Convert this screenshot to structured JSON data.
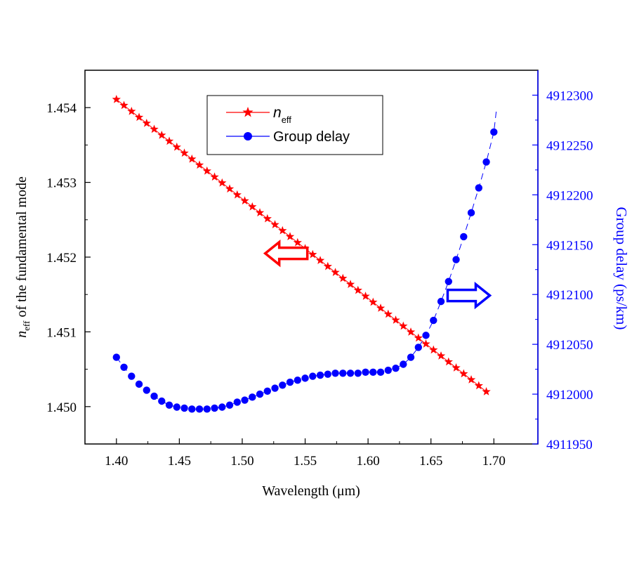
{
  "chart_data": {
    "type": "scatter",
    "xlabel": "Wavelength (μm)",
    "ylabel_left_prefix": "n",
    "ylabel_left_sub": "eff",
    "ylabel_left_suffix": " of the fundamental mode",
    "ylabel_right": "Group delay (ps/km)",
    "xlim": [
      1.375,
      1.735
    ],
    "ylim_left": [
      1.4495,
      1.4545
    ],
    "ylim_right": [
      4911950,
      4912325
    ],
    "x_ticks": [
      1.4,
      1.45,
      1.5,
      1.55,
      1.6,
      1.65,
      1.7
    ],
    "x_tick_labels": [
      "1.40",
      "1.45",
      "1.50",
      "1.55",
      "1.60",
      "1.65",
      "1.70"
    ],
    "y_left_ticks": [
      1.45,
      1.451,
      1.452,
      1.453,
      1.454
    ],
    "y_left_tick_labels": [
      "1.450",
      "1.451",
      "1.452",
      "1.453",
      "1.454"
    ],
    "y_right_ticks": [
      4911950,
      4912000,
      4912050,
      4912100,
      4912150,
      4912200,
      4912250,
      4912300
    ],
    "y_right_tick_labels": [
      "4911950",
      "4912000",
      "4912050",
      "4912100",
      "4912150",
      "4912200",
      "4912250",
      "4912300"
    ],
    "legend": {
      "position": "top-left",
      "entries": [
        {
          "name_main": "n",
          "name_sub": "eff",
          "marker": "star",
          "color": "#ff0000"
        },
        {
          "name_main": "Group delay",
          "name_sub": "",
          "marker": "circle",
          "color": "#0000ff"
        }
      ]
    },
    "series": [
      {
        "name": "neff",
        "axis": "left",
        "color": "#ff0000",
        "marker": "star",
        "line": "solid",
        "x_start": 1.4,
        "x_step": 0.006,
        "count": 50,
        "y_start": 1.45411,
        "y_end": 1.4502
      },
      {
        "name": "Group delay",
        "axis": "right",
        "color": "#0000ff",
        "marker": "circle",
        "line": "dashed-tail",
        "x": [
          1.4,
          1.406,
          1.412,
          1.418,
          1.424,
          1.43,
          1.436,
          1.442,
          1.448,
          1.454,
          1.46,
          1.466,
          1.472,
          1.478,
          1.484,
          1.49,
          1.496,
          1.502,
          1.508,
          1.514,
          1.52,
          1.526,
          1.532,
          1.538,
          1.544,
          1.55,
          1.556,
          1.562,
          1.568,
          1.574,
          1.58,
          1.586,
          1.592,
          1.598,
          1.604,
          1.61,
          1.616,
          1.622,
          1.628,
          1.634,
          1.64,
          1.646,
          1.652,
          1.658,
          1.664,
          1.67,
          1.676,
          1.682,
          1.688,
          1.694,
          1.7
        ],
        "y": [
          4912037,
          4912027,
          4912018,
          4912010,
          4912004,
          4911998,
          4911993,
          4911989,
          4911987,
          4911986,
          4911985,
          4911985,
          4911985,
          4911986,
          4911987,
          4911989,
          4911992,
          4911994,
          4911997,
          4912000,
          4912003,
          4912006,
          4912009,
          4912012,
          4912014,
          4912016,
          4912018,
          4912019,
          4912020,
          4912021,
          4912021,
          4912021,
          4912021,
          4912022,
          4912022,
          4912022,
          4912024,
          4912026,
          4912030,
          4912037,
          4912047,
          4912059,
          4912074,
          4912093,
          4912113,
          4912135,
          4912158,
          4912182,
          4912207,
          4912233,
          4912263
        ],
        "tail_end": {
          "x": 1.702,
          "y": 4912285
        }
      }
    ],
    "annotations": [
      {
        "type": "arrow",
        "direction": "left",
        "color": "#ff0000",
        "meaning": "left-axis",
        "at_x": 1.535,
        "at_y_left": 1.45205
      },
      {
        "type": "arrow",
        "direction": "right",
        "color": "#0000ff",
        "meaning": "right-axis",
        "at_x": 1.68,
        "at_y_right": 4912099
      }
    ]
  }
}
